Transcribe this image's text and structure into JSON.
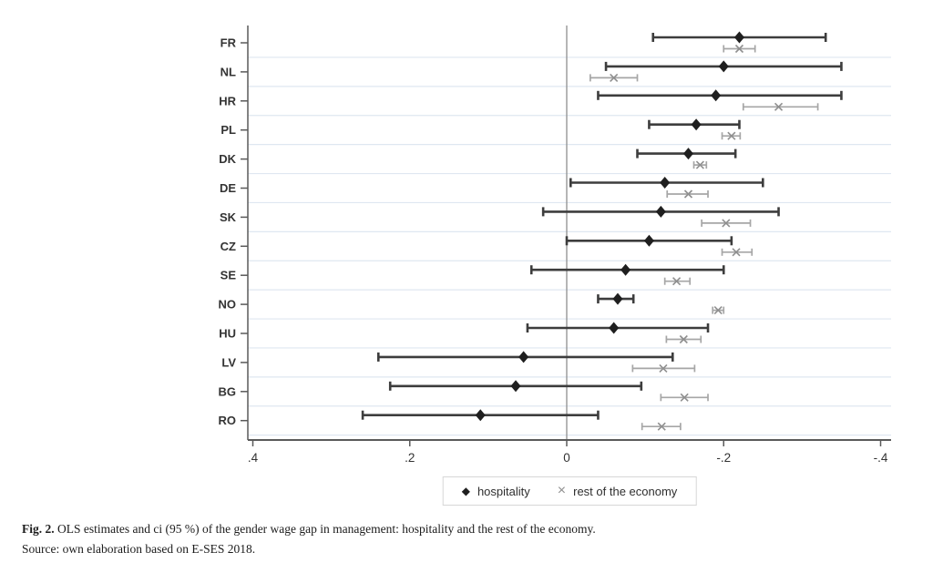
{
  "figure": {
    "caption_label": "Fig. 2.",
    "caption_text": " OLS estimates and ci (95 %) of the gender wage gap in management: hospitality and the rest of the economy.",
    "source_text": "Source: own elaboration based on E-SES 2018."
  },
  "colors": {
    "hospitality_marker": "#1f1f1f",
    "hospitality_line": "#3d3d3d",
    "rest_marker": "#8f8f8f",
    "rest_line": "#a6a6a6",
    "gridline": "#dfe7f1",
    "axis": "#5a5a5a",
    "zero_line": "#8f8f8f",
    "text": "#333333"
  },
  "legend": {
    "items": [
      {
        "label": "hospitality",
        "marker": "diamond"
      },
      {
        "label": "rest of the economy",
        "marker": "x"
      }
    ]
  },
  "chart_data": {
    "type": "scatter",
    "subtype": "dot-and-whisker coefficient plot, horizontal, 95% CI",
    "categories": [
      "FR",
      "NL",
      "HR",
      "PL",
      "DK",
      "DE",
      "SK",
      "CZ",
      "SE",
      "NO",
      "HU",
      "LV",
      "BG",
      "RO"
    ],
    "axis": {
      "ticks": [
        0.4,
        0.2,
        0,
        -0.2,
        -0.4
      ],
      "tick_labels": [
        ".4",
        ".2",
        "0",
        "-.2",
        "-.4"
      ],
      "range_left_to_right": [
        0.45,
        -0.45
      ],
      "reversed": true,
      "zero_reference_line": true,
      "grid": "light horizontal band separators"
    },
    "series": [
      {
        "name": "hospitality",
        "marker": "diamond",
        "points": [
          {
            "country": "FR",
            "est": -0.22,
            "ci": [
              -0.11,
              -0.33
            ]
          },
          {
            "country": "NL",
            "est": -0.2,
            "ci": [
              -0.05,
              -0.35
            ]
          },
          {
            "country": "HR",
            "est": -0.19,
            "ci": [
              -0.04,
              -0.35
            ]
          },
          {
            "country": "PL",
            "est": -0.165,
            "ci": [
              -0.105,
              -0.22
            ]
          },
          {
            "country": "DK",
            "est": -0.155,
            "ci": [
              -0.09,
              -0.215
            ]
          },
          {
            "country": "DE",
            "est": -0.125,
            "ci": [
              -0.005,
              -0.25
            ]
          },
          {
            "country": "SK",
            "est": -0.12,
            "ci": [
              0.03,
              -0.27
            ]
          },
          {
            "country": "CZ",
            "est": -0.105,
            "ci": [
              0.0,
              -0.21
            ]
          },
          {
            "country": "SE",
            "est": -0.075,
            "ci": [
              0.045,
              -0.2
            ]
          },
          {
            "country": "NO",
            "est": -0.065,
            "ci": [
              -0.04,
              -0.085
            ]
          },
          {
            "country": "HU",
            "est": -0.06,
            "ci": [
              0.05,
              -0.18
            ]
          },
          {
            "country": "LV",
            "est": 0.055,
            "ci": [
              0.24,
              -0.135
            ]
          },
          {
            "country": "BG",
            "est": 0.065,
            "ci": [
              0.225,
              -0.095
            ]
          },
          {
            "country": "RO",
            "est": 0.11,
            "ci": [
              0.26,
              -0.04
            ]
          }
        ]
      },
      {
        "name": "rest of the economy",
        "marker": "x",
        "points": [
          {
            "country": "FR",
            "est": -0.22,
            "ci": [
              -0.2,
              -0.24
            ]
          },
          {
            "country": "NL",
            "est": -0.06,
            "ci": [
              -0.03,
              -0.09
            ]
          },
          {
            "country": "HR",
            "est": -0.27,
            "ci": [
              -0.225,
              -0.32
            ]
          },
          {
            "country": "PL",
            "est": -0.21,
            "ci": [
              -0.198,
              -0.221
            ]
          },
          {
            "country": "DK",
            "est": -0.17,
            "ci": [
              -0.162,
              -0.178
            ]
          },
          {
            "country": "DE",
            "est": -0.155,
            "ci": [
              -0.128,
              -0.18
            ]
          },
          {
            "country": "SK",
            "est": -0.203,
            "ci": [
              -0.172,
              -0.234
            ]
          },
          {
            "country": "CZ",
            "est": -0.216,
            "ci": [
              -0.198,
              -0.236
            ]
          },
          {
            "country": "SE",
            "est": -0.14,
            "ci": [
              -0.125,
              -0.157
            ]
          },
          {
            "country": "NO",
            "est": -0.193,
            "ci": [
              -0.186,
              -0.2
            ]
          },
          {
            "country": "HU",
            "est": -0.149,
            "ci": [
              -0.127,
              -0.171
            ]
          },
          {
            "country": "LV",
            "est": -0.123,
            "ci": [
              -0.084,
              -0.163
            ]
          },
          {
            "country": "BG",
            "est": -0.15,
            "ci": [
              -0.12,
              -0.18
            ]
          },
          {
            "country": "RO",
            "est": -0.121,
            "ci": [
              -0.096,
              -0.145
            ]
          }
        ]
      }
    ]
  }
}
